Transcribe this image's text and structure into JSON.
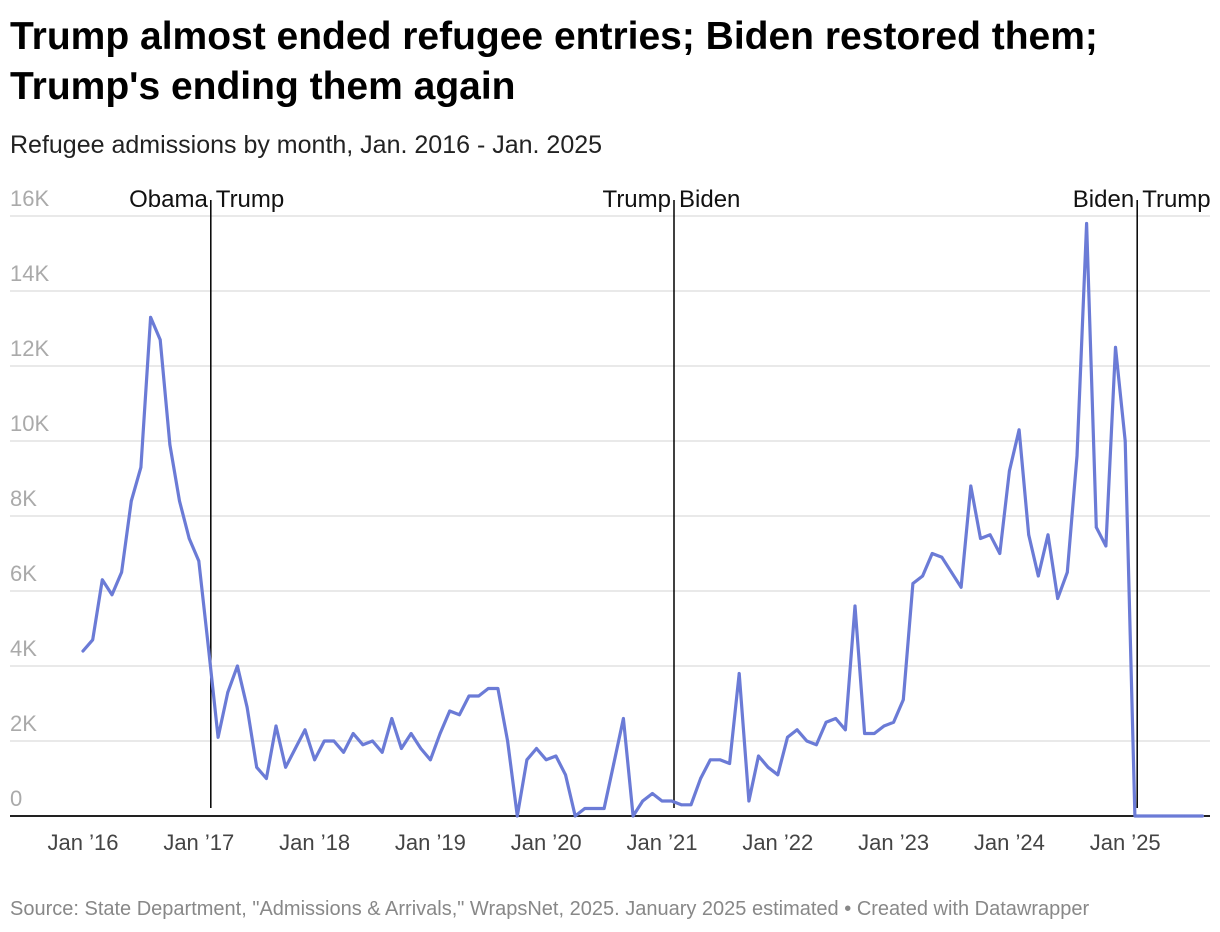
{
  "title": "Trump almost ended refugee entries; Biden restored them; Trump's ending them again",
  "subtitle": "Refugee admissions by month, Jan. 2016 - Jan. 2025",
  "footer": {
    "source": "Source: State Department, \"Admissions & Arrivals,\" WrapsNet, 2025. January 2025 estimated",
    "separator": "•",
    "credit": "Created with Datawrapper"
  },
  "colors": {
    "line": "#6b7bd6",
    "grid": "#e2e2e2",
    "axis": "#000000",
    "marker": "#000000"
  },
  "chart_data": {
    "type": "line",
    "title": "Trump almost ended refugee entries; Biden restored them; Trump's ending them again",
    "subtitle": "Refugee admissions by month, Jan. 2016 - Jan. 2025",
    "xlabel": "",
    "ylabel": "",
    "ylim": [
      0,
      16000
    ],
    "grid": true,
    "start": "2016-01",
    "yticks": [
      0,
      2000,
      4000,
      6000,
      8000,
      10000,
      12000,
      14000,
      16000
    ],
    "ytick_labels": [
      "0",
      "2K",
      "4K",
      "6K",
      "8K",
      "10K",
      "12K",
      "14K",
      "16K"
    ],
    "xticks": [
      "2016-01",
      "2017-01",
      "2018-01",
      "2019-01",
      "2020-01",
      "2021-01",
      "2022-01",
      "2023-01",
      "2024-01",
      "2025-01"
    ],
    "xtick_labels": [
      "Jan ’16",
      "Jan ’17",
      "Jan ’18",
      "Jan ’19",
      "Jan ’20",
      "Jan ’21",
      "Jan ’22",
      "Jan ’23",
      "Jan ’24",
      "Jan ’25"
    ],
    "annotations": [
      {
        "x": "2017-01",
        "left": "Obama",
        "right": "Trump"
      },
      {
        "x": "2021-01",
        "left": "Trump",
        "right": "Biden"
      },
      {
        "x": "2025-01",
        "left": "Biden",
        "right": "Trump"
      }
    ],
    "series": [
      {
        "values": [
          4400,
          4700,
          6300,
          5900,
          6500,
          8400,
          9300,
          13300,
          12700,
          9900,
          8400,
          7400,
          6800,
          4500,
          2100,
          3300,
          4000,
          2900,
          1300,
          1000,
          2400,
          1300,
          1800,
          2300,
          1500,
          2000,
          2000,
          1700,
          2200,
          1900,
          2000,
          1700,
          2600,
          1800,
          2200,
          1800,
          1500,
          2200,
          2800,
          2700,
          3200,
          3200,
          3400,
          3400,
          2000,
          0,
          1500,
          1800,
          1500,
          1600,
          1100,
          0,
          200,
          200,
          200,
          1400,
          2600,
          0,
          400,
          600,
          400,
          400,
          300,
          300,
          1000,
          1500,
          1500,
          1400,
          3800,
          400,
          1600,
          1300,
          1100,
          2100,
          2300,
          2000,
          1900,
          2500,
          2600,
          2300,
          5600,
          2200,
          2200,
          2400,
          2500,
          3100,
          6200,
          6400,
          7000,
          6900,
          6500,
          6100,
          8800,
          7400,
          7500,
          7000,
          9200,
          10300,
          7500,
          6400,
          7500,
          5800,
          6500,
          9600,
          15800,
          7700,
          7200,
          12500,
          10000,
          0,
          0,
          0,
          0,
          0,
          0,
          0,
          0
        ]
      }
    ]
  }
}
